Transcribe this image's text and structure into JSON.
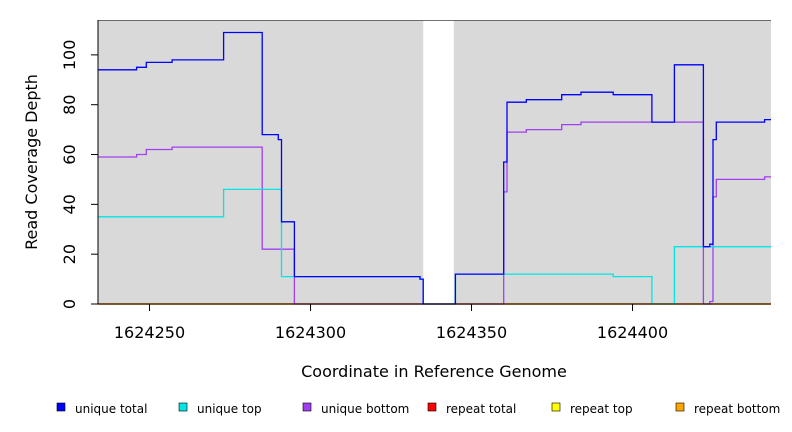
{
  "chart_data": {
    "type": "line",
    "title": "",
    "xlabel": "Coordinate in Reference Genome",
    "ylabel": "Read Coverage Depth",
    "xlim": [
      1624234,
      1624443
    ],
    "ylim": [
      0,
      114
    ],
    "x_ticks": [
      1624250,
      1624300,
      1624350,
      1624400
    ],
    "y_ticks": [
      0,
      20,
      40,
      60,
      80,
      100
    ],
    "x_tick_labels": [
      "1624250",
      "1624300",
      "1624350",
      "1624400"
    ],
    "y_tick_labels": [
      "0",
      "20",
      "40",
      "60",
      "80",
      "100"
    ],
    "background_color": "#d9d9d9",
    "gap": {
      "x_start": 1624335,
      "x_end": 1624344.5
    },
    "legend_position": "bottom",
    "series": [
      {
        "name": "unique total",
        "color": "#0000ff",
        "steps": [
          [
            1624234,
            94
          ],
          [
            1624246,
            95
          ],
          [
            1624249,
            97
          ],
          [
            1624257,
            98
          ],
          [
            1624273,
            109
          ],
          [
            1624285,
            68
          ],
          [
            1624290,
            66
          ],
          [
            1624291,
            33
          ],
          [
            1624295,
            11
          ],
          [
            1624334,
            10
          ],
          [
            1624335,
            0
          ],
          [
            1624345,
            12
          ],
          [
            1624360,
            57
          ],
          [
            1624361,
            81
          ],
          [
            1624367,
            82
          ],
          [
            1624378,
            84
          ],
          [
            1624384,
            85
          ],
          [
            1624394,
            84
          ],
          [
            1624406,
            73
          ],
          [
            1624413,
            96
          ],
          [
            1624422,
            23
          ],
          [
            1624424,
            24
          ],
          [
            1624425,
            66
          ],
          [
            1624426,
            73
          ],
          [
            1624441,
            74
          ],
          [
            1624443,
            74
          ]
        ]
      },
      {
        "name": "unique top",
        "color": "#00e5e5",
        "steps": [
          [
            1624234,
            35
          ],
          [
            1624273,
            46
          ],
          [
            1624291,
            11
          ],
          [
            1624295,
            11
          ],
          [
            1624334,
            10
          ],
          [
            1624335,
            0
          ],
          [
            1624345,
            12
          ],
          [
            1624394,
            11
          ],
          [
            1624406,
            0
          ],
          [
            1624413,
            23
          ],
          [
            1624443,
            23
          ]
        ]
      },
      {
        "name": "unique bottom",
        "color": "#a040f0",
        "steps": [
          [
            1624234,
            59
          ],
          [
            1624246,
            60
          ],
          [
            1624249,
            62
          ],
          [
            1624257,
            63
          ],
          [
            1624285,
            22
          ],
          [
            1624295,
            0
          ],
          [
            1624360,
            45
          ],
          [
            1624361,
            69
          ],
          [
            1624367,
            70
          ],
          [
            1624378,
            72
          ],
          [
            1624384,
            73
          ],
          [
            1624422,
            0
          ],
          [
            1624424,
            1
          ],
          [
            1624425,
            43
          ],
          [
            1624426,
            50
          ],
          [
            1624441,
            51
          ],
          [
            1624443,
            51
          ]
        ]
      },
      {
        "name": "repeat total",
        "color": "#ff0000",
        "steps": [
          [
            1624234,
            0
          ],
          [
            1624443,
            0
          ]
        ]
      },
      {
        "name": "repeat top",
        "color": "#ffff00",
        "steps": [
          [
            1624234,
            0
          ],
          [
            1624443,
            0
          ]
        ]
      },
      {
        "name": "repeat bottom",
        "color": "#ffa500",
        "steps": [
          [
            1624234,
            0
          ],
          [
            1624443,
            0
          ]
        ]
      }
    ]
  }
}
